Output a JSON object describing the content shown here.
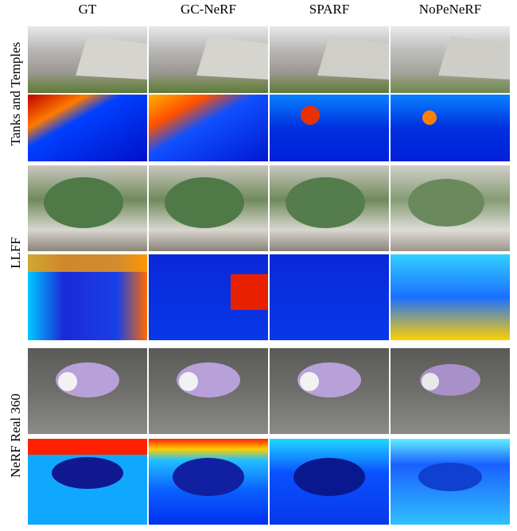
{
  "columns": [
    "GT",
    "GC-NeRF",
    "SPARF",
    "NoPeNeRF"
  ],
  "rows": [
    "Tanks and Temples",
    "LLFF",
    "NeRF Real 360"
  ]
}
